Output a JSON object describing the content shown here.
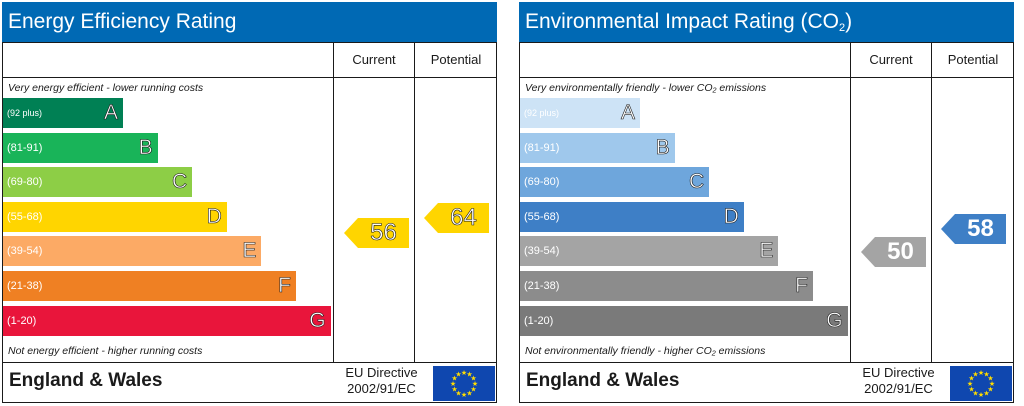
{
  "chart_data": [
    {
      "type": "bar",
      "title": "Energy Efficiency Rating",
      "columns": [
        "Current",
        "Potential"
      ],
      "note_top": "Very energy efficient - lower running costs",
      "note_bottom": "Not energy efficient - higher running costs",
      "bands": [
        {
          "range": "(92 plus)",
          "letter": "A",
          "color": "#008054"
        },
        {
          "range": "(81-91)",
          "letter": "B",
          "color": "#19b459"
        },
        {
          "range": "(69-80)",
          "letter": "C",
          "color": "#8dce46"
        },
        {
          "range": "(55-68)",
          "letter": "D",
          "color": "#ffd500"
        },
        {
          "range": "(39-54)",
          "letter": "E",
          "color": "#fcaa65"
        },
        {
          "range": "(21-38)",
          "letter": "F",
          "color": "#ef8023"
        },
        {
          "range": "(1-20)",
          "letter": "G",
          "color": "#e9153b"
        }
      ],
      "current": {
        "value": 56,
        "color": "#ffd500"
      },
      "potential": {
        "value": 64,
        "color": "#ffd500"
      },
      "footer": {
        "region": "England & Wales",
        "directive_line1": "EU Directive",
        "directive_line2": "2002/91/EC"
      }
    },
    {
      "type": "bar",
      "title": "Environmental Impact Rating (CO",
      "title_sub": "2",
      "title_end": ")",
      "columns": [
        "Current",
        "Potential"
      ],
      "note_top": "Very environmentally friendly - lower CO₂ emissions",
      "note_bottom": "Not environmentally friendly - higher CO₂ emissions",
      "bands": [
        {
          "range": "(92 plus)",
          "letter": "A",
          "color": "#cde3f6"
        },
        {
          "range": "(81-91)",
          "letter": "B",
          "color": "#9fc8ec"
        },
        {
          "range": "(69-80)",
          "letter": "C",
          "color": "#6ea6dc"
        },
        {
          "range": "(55-68)",
          "letter": "D",
          "color": "#3e7fc6"
        },
        {
          "range": "(39-54)",
          "letter": "E",
          "color": "#a4a4a4"
        },
        {
          "range": "(21-38)",
          "letter": "F",
          "color": "#8c8c8c"
        },
        {
          "range": "(1-20)",
          "letter": "G",
          "color": "#7a7a7a"
        }
      ],
      "current": {
        "value": 50,
        "color": "#a4a4a4"
      },
      "potential": {
        "value": 58,
        "color": "#3e7fc6"
      },
      "footer": {
        "region": "England & Wales",
        "directive_line1": "EU Directive",
        "directive_line2": "2002/91/EC"
      }
    }
  ],
  "colors": {
    "title_bar": "#0069b4",
    "eu_flag": "#0f47af",
    "eu_star": "#ffdd00"
  }
}
